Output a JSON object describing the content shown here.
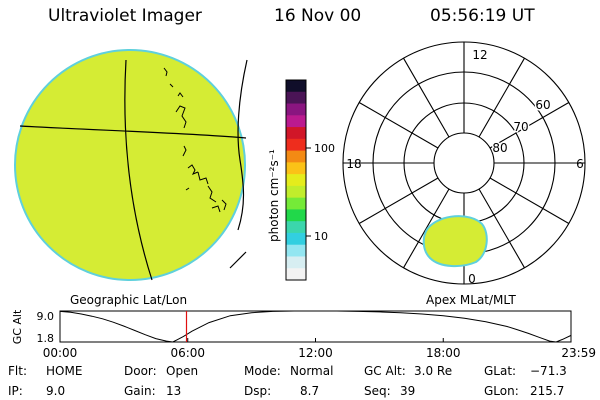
{
  "header": {
    "instrument": "Ultraviolet Imager",
    "date": "16 Nov 00",
    "time": "05:56:19 UT"
  },
  "colorbar": {
    "unit_label": "photon cm⁻²s⁻¹",
    "tick_labels": [
      "100",
      "10"
    ],
    "colors_top_to_bottom": [
      "#100e2a",
      "#4a1456",
      "#8a1580",
      "#bb1a8f",
      "#d11628",
      "#ee2d1d",
      "#f38a14",
      "#fbc217",
      "#e5ec1c",
      "#c1ed2c",
      "#75ea38",
      "#21d84a",
      "#3bd6ac",
      "#32cfe0",
      "#93e6f1",
      "#d7eef2",
      "#f3f3f3"
    ]
  },
  "panels": {
    "geographic_label": "Geographic Lat/Lon",
    "apex_label": "Apex MLat/MLT",
    "apex_hour_labels": [
      "12",
      "18",
      "6",
      "0"
    ],
    "apex_lat_labels": [
      "60",
      "70",
      "80"
    ],
    "image_fill_color": "#d5ec34",
    "image_edge_color": "#5fd0dc"
  },
  "chart_data": {
    "type": "line",
    "title": "",
    "ylabel": "GC Alt",
    "xlabel": "",
    "x_ticks": [
      "00:00",
      "06:00",
      "12:00",
      "18:00",
      "23:59"
    ],
    "y_ticks": [
      "9.0",
      "1.8"
    ],
    "xlim_hours": [
      0,
      24
    ],
    "ylim": [
      1.8,
      9.0
    ],
    "series": [
      {
        "x_hours": [
          0,
          0.5,
          1,
          1.5,
          2,
          2.5,
          3,
          3.5,
          4,
          4.5,
          5,
          5.3,
          5.5,
          5.8,
          6.2,
          7,
          8,
          9,
          10,
          11,
          12,
          13,
          14,
          15,
          16,
          17,
          18,
          19,
          20,
          21,
          21.5,
          22,
          22.5,
          23,
          23.3,
          23.6,
          23.99
        ],
        "values": [
          8.9,
          8.7,
          8.3,
          7.8,
          7.2,
          6.4,
          5.5,
          4.5,
          3.5,
          2.6,
          2.0,
          1.8,
          2.3,
          3.1,
          4.3,
          6.3,
          7.9,
          8.6,
          8.9,
          9.0,
          9.0,
          9.0,
          8.9,
          8.8,
          8.6,
          8.3,
          7.9,
          7.3,
          6.5,
          5.4,
          4.6,
          3.8,
          2.9,
          2.0,
          1.8,
          2.4,
          3.3
        ]
      }
    ],
    "current_time_hours": 5.94,
    "marker_color": "#e01010"
  },
  "status": {
    "flt_label": "Flt:",
    "flt_value": "HOME",
    "ip_label": "IP:",
    "ip_value": "9.0",
    "door_label": "Door:",
    "door_value": "Open",
    "gain_label": "Gain:",
    "gain_value": "13",
    "mode_label": "Mode:",
    "mode_value": "Normal",
    "dsp_label": "Dsp:",
    "dsp_value": "8.7",
    "gcalt_label": "GC Alt:",
    "gcalt_value": "3.0 Re",
    "seq_label": "Seq:",
    "seq_value": "39",
    "glat_label": "GLat:",
    "glat_value": "−71.3",
    "glon_label": "GLon:",
    "glon_value": "215.7"
  }
}
